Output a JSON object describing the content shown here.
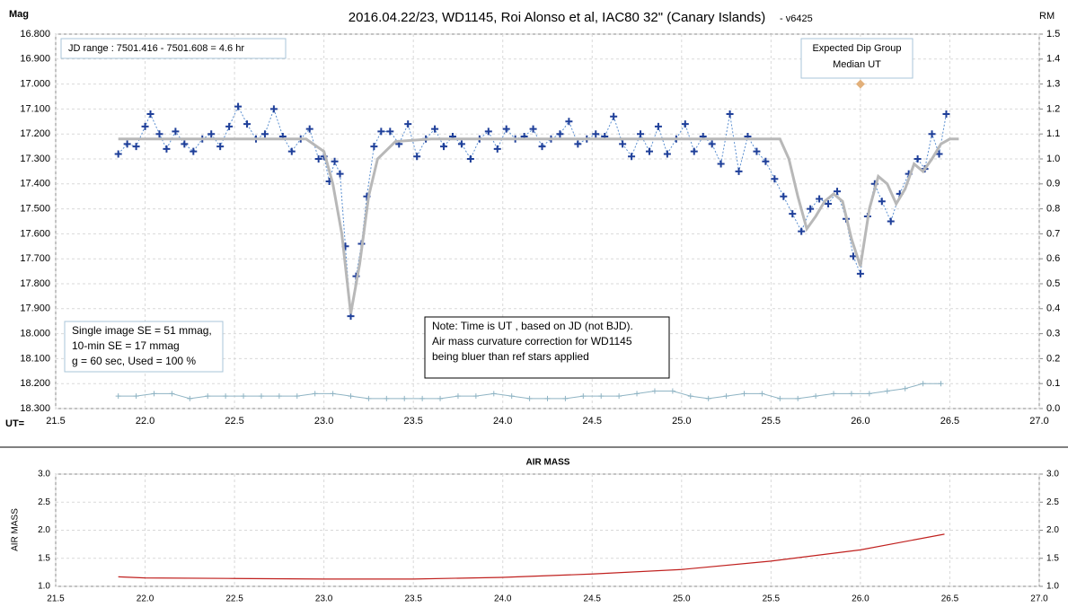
{
  "chart_data": [
    {
      "type": "scatter",
      "title": "2016.04.22/23,  WD1145, Roi Alonso et al, IAC80 32\" (Canary Islands)",
      "subtitle": "- v6425",
      "y_label": "Mag",
      "y2_label": "RM",
      "x_label": "UT=",
      "xlim": [
        21.5,
        27.0
      ],
      "xticks": [
        21.5,
        {
          "value": 22.0,
          "label": "22.0"
        },
        22.5,
        {
          "value": 23.0,
          "label": "23.0"
        },
        23.5,
        {
          "value": 24.0,
          "label": "24.0"
        },
        24.5,
        {
          "value": 25.0,
          "label": "25.0"
        },
        25.5,
        {
          "value": 26.0,
          "label": "26.0"
        },
        26.5,
        {
          "value": 27.0,
          "label": "27.0"
        }
      ],
      "ylim": [
        16.8,
        18.3
      ],
      "y_reversed": true,
      "yticks": [
        {
          "value": 16.8,
          "label": "16.800"
        },
        {
          "value": 16.9,
          "label": "16.900"
        },
        {
          "value": 17.0,
          "label": "17.000"
        },
        {
          "value": 17.1,
          "label": "17.100"
        },
        {
          "value": 17.2,
          "label": "17.200"
        },
        {
          "value": 17.3,
          "label": "17.300"
        },
        {
          "value": 17.4,
          "label": "17.400"
        },
        {
          "value": 17.5,
          "label": "17.500"
        },
        {
          "value": 17.6,
          "label": "17.600"
        },
        {
          "value": 17.7,
          "label": "17.700"
        },
        {
          "value": 17.8,
          "label": "17.800"
        },
        {
          "value": 17.9,
          "label": "17.900"
        },
        {
          "value": 18.0,
          "label": "18.000"
        },
        {
          "value": 18.1,
          "label": "18.100"
        },
        {
          "value": 18.2,
          "label": "18.200"
        },
        {
          "value": 18.3,
          "label": "18.300"
        }
      ],
      "y2lim": [
        0.0,
        1.5
      ],
      "y2ticks": [
        1.5,
        1.4,
        1.3,
        1.2,
        1.1,
        {
          "value": 1.0,
          "label": "1.0"
        },
        0.9,
        0.8,
        0.7,
        0.6,
        0.5,
        0.4,
        0.3,
        0.2,
        0.1,
        {
          "value": 0.0,
          "label": "0.0"
        }
      ],
      "grid": true,
      "series": [
        {
          "marker": "plus",
          "connect": "dashed",
          "color": "#1f3f99",
          "x": [
            21.85,
            21.9,
            21.95,
            22.0,
            22.03,
            22.08,
            22.12,
            22.17,
            22.22,
            22.27,
            22.32,
            22.37,
            22.42,
            22.47,
            22.52,
            22.57,
            22.62,
            22.67,
            22.72,
            22.77,
            22.82,
            22.87,
            22.92,
            22.97,
            23.0,
            23.03,
            23.06,
            23.09,
            23.12,
            23.15,
            23.18,
            23.21,
            23.24,
            23.28,
            23.32,
            23.37,
            23.42,
            23.47,
            23.52,
            23.57,
            23.62,
            23.67,
            23.72,
            23.77,
            23.82,
            23.87,
            23.92,
            23.97,
            24.02,
            24.07,
            24.12,
            24.17,
            24.22,
            24.27,
            24.32,
            24.37,
            24.42,
            24.47,
            24.52,
            24.57,
            24.62,
            24.67,
            24.72,
            24.77,
            24.82,
            24.87,
            24.92,
            24.97,
            25.02,
            25.07,
            25.12,
            25.17,
            25.22,
            25.27,
            25.32,
            25.37,
            25.42,
            25.47,
            25.52,
            25.57,
            25.62,
            25.67,
            25.72,
            25.77,
            25.82,
            25.87,
            25.92,
            25.96,
            26.0,
            26.04,
            26.08,
            26.12,
            26.17,
            26.22,
            26.27,
            26.32,
            26.36,
            26.4,
            26.44,
            26.48
          ],
          "values": [
            17.28,
            17.24,
            17.25,
            17.17,
            17.12,
            17.2,
            17.26,
            17.19,
            17.24,
            17.27,
            17.22,
            17.2,
            17.25,
            17.17,
            17.09,
            17.16,
            17.22,
            17.2,
            17.1,
            17.21,
            17.27,
            17.22,
            17.18,
            17.3,
            17.29,
            17.39,
            17.31,
            17.36,
            17.65,
            17.93,
            17.77,
            17.64,
            17.45,
            17.25,
            17.19,
            17.19,
            17.24,
            17.16,
            17.29,
            17.22,
            17.18,
            17.25,
            17.21,
            17.24,
            17.3,
            17.22,
            17.19,
            17.26,
            17.18,
            17.22,
            17.21,
            17.18,
            17.25,
            17.22,
            17.2,
            17.15,
            17.24,
            17.22,
            17.2,
            17.21,
            17.13,
            17.24,
            17.29,
            17.2,
            17.27,
            17.17,
            17.28,
            17.22,
            17.16,
            17.27,
            17.21,
            17.24,
            17.32,
            17.12,
            17.35,
            17.21,
            17.27,
            17.31,
            17.38,
            17.45,
            17.52,
            17.59,
            17.5,
            17.46,
            17.48,
            17.43,
            17.54,
            17.69,
            17.76,
            17.53,
            17.4,
            17.47,
            17.55,
            17.44,
            17.36,
            17.3,
            17.34,
            17.2,
            17.28,
            17.12
          ]
        },
        {
          "marker": "line",
          "color": "#b8b8b8",
          "x": [
            21.85,
            22.9,
            23.0,
            23.05,
            23.1,
            23.15,
            23.2,
            23.25,
            23.3,
            23.4,
            23.6,
            25.55,
            25.6,
            25.65,
            25.7,
            25.75,
            25.8,
            25.85,
            25.9,
            25.95,
            26.0,
            26.05,
            26.1,
            26.15,
            26.2,
            26.25,
            26.3,
            26.35,
            26.4,
            26.45,
            26.5,
            26.55
          ],
          "values": [
            17.22,
            17.22,
            17.27,
            17.4,
            17.6,
            17.92,
            17.72,
            17.45,
            17.3,
            17.23,
            17.22,
            17.22,
            17.3,
            17.45,
            17.58,
            17.53,
            17.47,
            17.44,
            17.47,
            17.62,
            17.73,
            17.5,
            17.37,
            17.4,
            17.48,
            17.42,
            17.32,
            17.35,
            17.3,
            17.24,
            17.22,
            17.22
          ]
        },
        {
          "marker": "plus-small",
          "color": "#8fb4c4",
          "axis": "y2",
          "x": [
            21.85,
            21.95,
            22.05,
            22.15,
            22.25,
            22.35,
            22.45,
            22.55,
            22.65,
            22.75,
            22.85,
            22.95,
            23.05,
            23.15,
            23.25,
            23.35,
            23.45,
            23.55,
            23.65,
            23.75,
            23.85,
            23.95,
            24.05,
            24.15,
            24.25,
            24.35,
            24.45,
            24.55,
            24.65,
            24.75,
            24.85,
            24.95,
            25.05,
            25.15,
            25.25,
            25.35,
            25.45,
            25.55,
            25.65,
            25.75,
            25.85,
            25.95,
            26.05,
            26.15,
            26.25,
            26.35,
            26.45
          ],
          "values": [
            0.05,
            0.05,
            0.06,
            0.06,
            0.04,
            0.05,
            0.05,
            0.05,
            0.05,
            0.05,
            0.05,
            0.06,
            0.06,
            0.05,
            0.04,
            0.04,
            0.04,
            0.04,
            0.04,
            0.05,
            0.05,
            0.06,
            0.05,
            0.04,
            0.04,
            0.04,
            0.05,
            0.05,
            0.05,
            0.06,
            0.07,
            0.07,
            0.05,
            0.04,
            0.05,
            0.06,
            0.06,
            0.04,
            0.04,
            0.05,
            0.06,
            0.06,
            0.06,
            0.07,
            0.08,
            0.1,
            0.1
          ]
        },
        {
          "marker": "diamond",
          "color": "#e2b07a",
          "x": [
            26.0
          ],
          "values": [
            17.0
          ]
        }
      ],
      "annotations": [
        {
          "lines": [
            "JD range  : 7501.416 - 7501.608  = 4.6 hr"
          ]
        },
        {
          "lines": [
            "Single image SE = 51 mmag,",
            "10-min SE = 17 mmag",
            "g = 60 sec, Used = 100 %"
          ]
        },
        {
          "lines": [
            "Note: Time is UT , based on JD (not BJD).",
            "Air mass  curvature correction for WD1145",
            "being bluer  than ref stars applied"
          ]
        },
        {
          "lines": [
            "Expected Dip Group",
            "Median UT"
          ]
        }
      ]
    },
    {
      "type": "line",
      "title": "AIR MASS",
      "y_label": "AIR MASS",
      "xlim": [
        21.5,
        27.0
      ],
      "xticks": [
        21.5,
        {
          "value": 22.0,
          "label": "22.0"
        },
        22.5,
        {
          "value": 23.0,
          "label": "23.0"
        },
        23.5,
        {
          "value": 24.0,
          "label": "24.0"
        },
        24.5,
        {
          "value": 25.0,
          "label": "25.0"
        },
        25.5,
        {
          "value": 26.0,
          "label": "26.0"
        },
        26.5,
        {
          "value": 27.0,
          "label": "27.0"
        }
      ],
      "ylim": [
        1.0,
        3.0
      ],
      "yticks": [
        {
          "value": 1.0,
          "label": "1.0"
        },
        1.5,
        {
          "value": 2.0,
          "label": "2.0"
        },
        2.5,
        {
          "value": 3.0,
          "label": "3.0"
        }
      ],
      "y2ticks": [
        {
          "value": 1.0,
          "label": "1.0"
        },
        1.5,
        {
          "value": 2.0,
          "label": "2.0"
        },
        2.5,
        {
          "value": 3.0,
          "label": "3.0"
        }
      ],
      "grid": true,
      "series": [
        {
          "marker": "line",
          "color": "#c0201e",
          "x": [
            21.85,
            22.0,
            22.5,
            23.0,
            23.5,
            24.0,
            24.5,
            25.0,
            25.5,
            26.0,
            26.47
          ],
          "values": [
            1.17,
            1.15,
            1.14,
            1.13,
            1.13,
            1.16,
            1.22,
            1.3,
            1.45,
            1.65,
            1.93
          ]
        }
      ]
    }
  ]
}
